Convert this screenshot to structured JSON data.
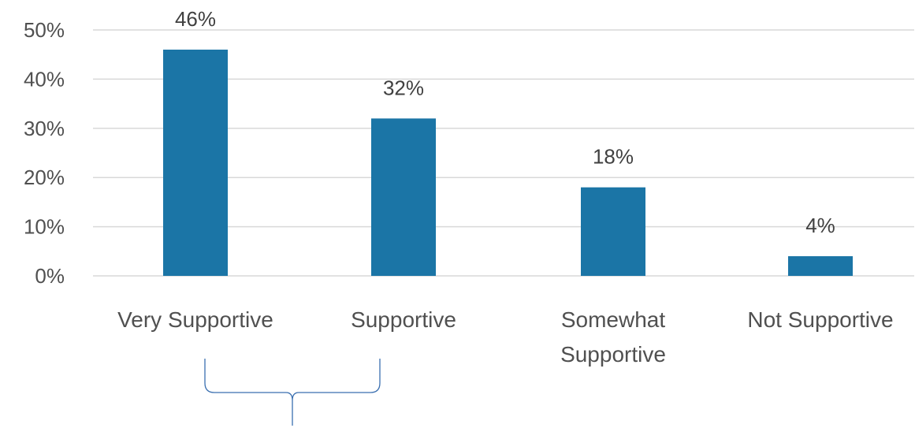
{
  "chart_data": {
    "type": "bar",
    "categories": [
      "Very Supportive",
      "Supportive",
      "Somewhat Supportive",
      "Not Supportive"
    ],
    "category_lines": [
      [
        "Very Supportive"
      ],
      [
        "Supportive"
      ],
      [
        "Somewhat",
        "Supportive"
      ],
      [
        "Not Supportive"
      ]
    ],
    "values": [
      46,
      32,
      18,
      4
    ],
    "data_labels": [
      "46%",
      "32%",
      "18%",
      "4%"
    ],
    "ylim": [
      0,
      50
    ],
    "yticks": [
      0,
      10,
      20,
      30,
      40,
      50
    ],
    "ytick_labels": [
      "0%",
      "10%",
      "20%",
      "30%",
      "40%",
      "50%"
    ],
    "title": "",
    "xlabel": "",
    "ylabel": "",
    "grid": true,
    "legend": "none",
    "bar_color": "#1b75a6",
    "grid_color": "#d9d9d9",
    "annotation": {
      "type": "brace",
      "spans_categories": [
        "Very Supportive",
        "Supportive"
      ],
      "color": "#3a6fb0"
    }
  }
}
